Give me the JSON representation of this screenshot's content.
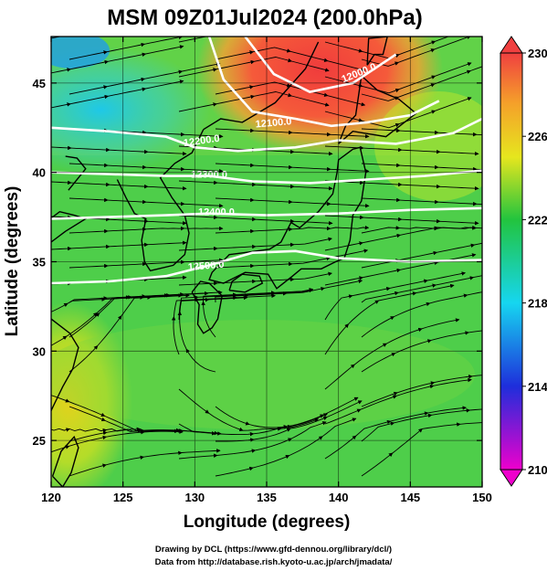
{
  "title": "MSM 09Z01Jul2024 (200.0hPa)",
  "x_axis": {
    "label": "Longitude (degrees)",
    "ticks": [
      "120",
      "125",
      "130",
      "135",
      "140",
      "145",
      "150"
    ],
    "range": [
      120,
      150
    ]
  },
  "y_axis": {
    "label": "Latitude  (degrees)",
    "ticks": [
      "25",
      "30",
      "35",
      "40",
      "45"
    ],
    "range": [
      22.4,
      47.6
    ]
  },
  "colorbar": {
    "ticks": [
      "230",
      "226",
      "222",
      "218",
      "214",
      "210"
    ],
    "range": [
      210,
      230
    ],
    "colors": [
      "#ee00cc",
      "#1e2edb",
      "#16d6f0",
      "#22c43e",
      "#e6e61e",
      "#f5a02a",
      "#f04040"
    ]
  },
  "contours": [
    {
      "label": "12000.0"
    },
    {
      "label": "12100.0"
    },
    {
      "label": "12200.0"
    },
    {
      "label": "12300.0"
    },
    {
      "label": "12400.0"
    },
    {
      "label": "12500.0"
    }
  ],
  "credits": {
    "line1": "Drawing by DCL (https://www.gfd-dennou.org/library/dcl/)",
    "line2": "Data from http://database.rish.kyoto-u.ac.jp/arch/jmadata/"
  }
}
